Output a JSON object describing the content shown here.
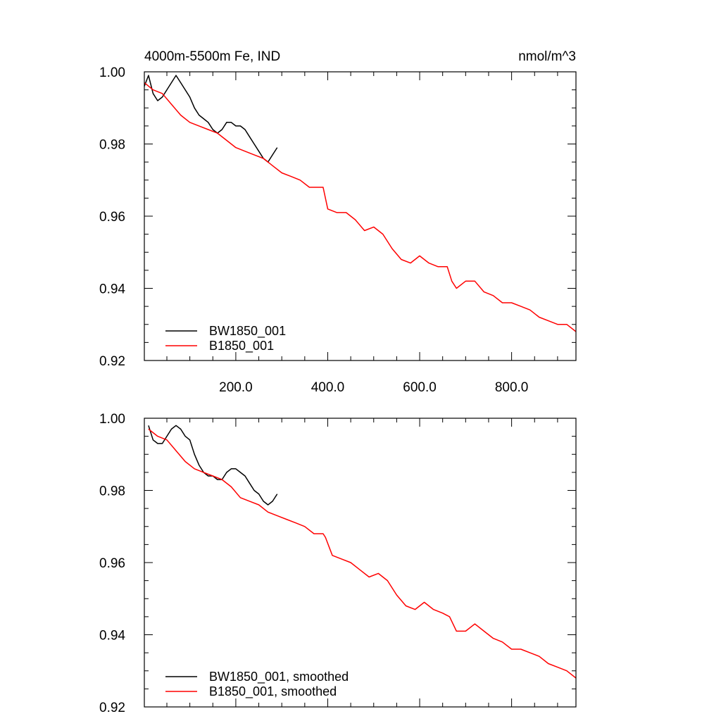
{
  "colors": {
    "BW1850_001": "#000000",
    "B1850_001": "#ff0000"
  },
  "chart_data": [
    {
      "type": "line",
      "title": "4000m-5500m Fe, IND",
      "units": "nmol/m^3",
      "xlim": [
        1,
        940
      ],
      "ylim": [
        0.92,
        1.0
      ],
      "x_ticks": [
        200,
        400,
        600,
        800
      ],
      "x_tick_labels": [
        "200.0",
        "400.0",
        "600.0",
        "800.0"
      ],
      "y_ticks": [
        0.92,
        0.94,
        0.96,
        0.98,
        1.0
      ],
      "y_tick_labels": [
        "0.92",
        "0.94",
        "0.96",
        "0.98",
        "1.00"
      ],
      "legend_position": "bottom-left",
      "series": [
        {
          "name": "BW1850_001",
          "color": "#000000",
          "x": [
            1,
            10,
            20,
            30,
            40,
            50,
            60,
            70,
            80,
            90,
            100,
            110,
            120,
            130,
            140,
            150,
            160,
            170,
            180,
            190,
            200,
            210,
            220,
            230,
            240,
            250,
            260,
            270,
            280,
            290
          ],
          "y": [
            0.996,
            0.999,
            0.994,
            0.992,
            0.993,
            0.995,
            0.997,
            0.999,
            0.997,
            0.995,
            0.993,
            0.99,
            0.988,
            0.987,
            0.986,
            0.984,
            0.983,
            0.984,
            0.986,
            0.986,
            0.985,
            0.985,
            0.984,
            0.982,
            0.98,
            0.978,
            0.976,
            0.975,
            0.977,
            0.979
          ]
        },
        {
          "name": "B1850_001",
          "color": "#ff0000",
          "x": [
            1,
            20,
            40,
            60,
            80,
            100,
            120,
            140,
            160,
            180,
            200,
            220,
            240,
            260,
            280,
            300,
            320,
            340,
            360,
            380,
            390,
            400,
            420,
            440,
            460,
            480,
            500,
            520,
            540,
            560,
            580,
            600,
            620,
            640,
            660,
            670,
            680,
            700,
            720,
            740,
            760,
            780,
            800,
            820,
            840,
            860,
            880,
            900,
            920,
            940
          ],
          "y": [
            0.997,
            0.995,
            0.994,
            0.991,
            0.988,
            0.986,
            0.985,
            0.984,
            0.983,
            0.981,
            0.979,
            0.978,
            0.977,
            0.976,
            0.974,
            0.972,
            0.971,
            0.97,
            0.968,
            0.968,
            0.968,
            0.962,
            0.961,
            0.961,
            0.959,
            0.956,
            0.957,
            0.955,
            0.951,
            0.948,
            0.947,
            0.949,
            0.947,
            0.946,
            0.946,
            0.942,
            0.94,
            0.942,
            0.942,
            0.939,
            0.938,
            0.936,
            0.936,
            0.935,
            0.934,
            0.932,
            0.931,
            0.93,
            0.93,
            0.928
          ]
        }
      ]
    },
    {
      "type": "line",
      "xlim": [
        1,
        940
      ],
      "ylim": [
        0.92,
        1.0
      ],
      "y_ticks": [
        0.92,
        0.94,
        0.96,
        0.98,
        1.0
      ],
      "y_tick_labels": [
        "0.92",
        "0.94",
        "0.96",
        "0.98",
        "1.00"
      ],
      "legend_position": "bottom-left",
      "series": [
        {
          "name": "BW1850_001, smoothed",
          "color": "#000000",
          "x": [
            10,
            20,
            30,
            40,
            50,
            60,
            70,
            80,
            90,
            100,
            110,
            120,
            130,
            140,
            150,
            160,
            170,
            180,
            190,
            200,
            210,
            220,
            230,
            240,
            250,
            260,
            270,
            280,
            290
          ],
          "y": [
            0.998,
            0.994,
            0.993,
            0.993,
            0.995,
            0.997,
            0.998,
            0.997,
            0.995,
            0.994,
            0.99,
            0.987,
            0.985,
            0.984,
            0.984,
            0.983,
            0.983,
            0.985,
            0.986,
            0.986,
            0.985,
            0.984,
            0.982,
            0.98,
            0.979,
            0.977,
            0.976,
            0.977,
            0.979
          ]
        },
        {
          "name": "B1850_001, smoothed",
          "color": "#ff0000",
          "x": [
            10,
            30,
            50,
            70,
            90,
            110,
            130,
            150,
            170,
            190,
            210,
            230,
            250,
            270,
            290,
            310,
            330,
            350,
            370,
            390,
            395,
            410,
            430,
            450,
            470,
            490,
            510,
            530,
            550,
            570,
            590,
            610,
            630,
            650,
            665,
            680,
            700,
            720,
            740,
            760,
            780,
            800,
            820,
            840,
            860,
            880,
            900,
            920,
            940
          ],
          "y": [
            0.997,
            0.995,
            0.994,
            0.991,
            0.988,
            0.986,
            0.985,
            0.984,
            0.983,
            0.981,
            0.978,
            0.977,
            0.976,
            0.974,
            0.973,
            0.972,
            0.971,
            0.97,
            0.968,
            0.968,
            0.967,
            0.962,
            0.961,
            0.96,
            0.958,
            0.956,
            0.957,
            0.955,
            0.951,
            0.948,
            0.947,
            0.949,
            0.947,
            0.946,
            0.945,
            0.941,
            0.941,
            0.943,
            0.941,
            0.939,
            0.938,
            0.936,
            0.936,
            0.935,
            0.934,
            0.932,
            0.931,
            0.93,
            0.928
          ]
        }
      ]
    }
  ]
}
